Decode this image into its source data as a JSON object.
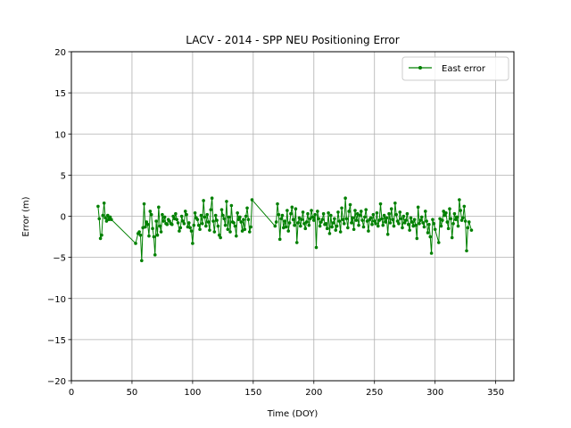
{
  "chart_data": {
    "type": "line",
    "title": "LACV - 2014 - SPP NEU Positioning Error",
    "xlabel": "Time (DOY)",
    "ylabel": "Error (m)",
    "xlim": [
      0,
      365
    ],
    "ylim": [
      -20,
      20
    ],
    "xticks": [
      0,
      50,
      100,
      150,
      200,
      250,
      300,
      350
    ],
    "yticks": [
      -20,
      -15,
      -10,
      -5,
      0,
      5,
      10,
      15,
      20
    ],
    "grid": true,
    "legend_position": "top-right",
    "series": [
      {
        "name": "East error",
        "color": "#008000",
        "points": [
          [
            22,
            1.2
          ],
          [
            23,
            -0.3
          ],
          [
            24,
            -2.7
          ],
          [
            25,
            -2.3
          ],
          [
            26,
            0.1
          ],
          [
            27,
            1.6
          ],
          [
            28,
            -0.2
          ],
          [
            29,
            -0.6
          ],
          [
            30,
            0.1
          ],
          [
            31,
            -0.4
          ],
          [
            32,
            -0.1
          ],
          [
            33,
            -0.4
          ],
          [
            53,
            -3.3
          ],
          [
            55,
            -2.1
          ],
          [
            56,
            -1.9
          ],
          [
            57,
            -2.3
          ],
          [
            58,
            -5.4
          ],
          [
            59,
            -1.4
          ],
          [
            60,
            1.5
          ],
          [
            61,
            -1.3
          ],
          [
            62,
            -0.7
          ],
          [
            63,
            -1.0
          ],
          [
            64,
            -2.4
          ],
          [
            65,
            0.6
          ],
          [
            66,
            0.2
          ],
          [
            67,
            -1.5
          ],
          [
            68,
            -2.5
          ],
          [
            69,
            -4.7
          ],
          [
            70,
            -0.6
          ],
          [
            71,
            -2.3
          ],
          [
            72,
            1.1
          ],
          [
            73,
            -1.2
          ],
          [
            74,
            -1.9
          ],
          [
            75,
            0.2
          ],
          [
            76,
            -0.6
          ],
          [
            77,
            -0.1
          ],
          [
            78,
            -0.9
          ],
          [
            79,
            -1.0
          ],
          [
            80,
            -0.4
          ],
          [
            81,
            -0.6
          ],
          [
            82,
            -0.9
          ],
          [
            83,
            -1.0
          ],
          [
            84,
            0.0
          ],
          [
            85,
            -0.3
          ],
          [
            86,
            0.3
          ],
          [
            87,
            -0.4
          ],
          [
            88,
            -0.8
          ],
          [
            89,
            -1.8
          ],
          [
            90,
            -1.4
          ],
          [
            91,
            0.0
          ],
          [
            92,
            -0.6
          ],
          [
            93,
            -0.9
          ],
          [
            94,
            0.6
          ],
          [
            95,
            0.2
          ],
          [
            96,
            -1.3
          ],
          [
            97,
            -0.8
          ],
          [
            98,
            -1.4
          ],
          [
            99,
            -1.8
          ],
          [
            100,
            -3.3
          ],
          [
            101,
            -1.1
          ],
          [
            102,
            0.4
          ],
          [
            103,
            -0.2
          ],
          [
            104,
            -0.4
          ],
          [
            105,
            -1.1
          ],
          [
            106,
            -1.6
          ],
          [
            107,
            0.1
          ],
          [
            108,
            -0.9
          ],
          [
            109,
            1.9
          ],
          [
            110,
            -0.1
          ],
          [
            111,
            -1.2
          ],
          [
            112,
            0.2
          ],
          [
            113,
            -0.7
          ],
          [
            114,
            -1.7
          ],
          [
            115,
            0.8
          ],
          [
            116,
            2.2
          ],
          [
            117,
            -0.6
          ],
          [
            118,
            -1.9
          ],
          [
            119,
            0.1
          ],
          [
            120,
            -0.5
          ],
          [
            121,
            -1.2
          ],
          [
            122,
            -2.3
          ],
          [
            123,
            -2.6
          ],
          [
            124,
            0.8
          ],
          [
            125,
            0.1
          ],
          [
            126,
            -0.3
          ],
          [
            127,
            -1.1
          ],
          [
            128,
            1.8
          ],
          [
            129,
            -1.6
          ],
          [
            130,
            -0.1
          ],
          [
            131,
            -1.9
          ],
          [
            132,
            1.3
          ],
          [
            133,
            -0.7
          ],
          [
            134,
            -0.8
          ],
          [
            135,
            -1.2
          ],
          [
            136,
            -2.4
          ],
          [
            137,
            0.4
          ],
          [
            138,
            -0.4
          ],
          [
            139,
            -0.1
          ],
          [
            140,
            -0.7
          ],
          [
            141,
            -1.8
          ],
          [
            142,
            -0.4
          ],
          [
            143,
            -1.6
          ],
          [
            144,
            0.0
          ],
          [
            145,
            1.0
          ],
          [
            146,
            -0.4
          ],
          [
            147,
            -1.9
          ],
          [
            148,
            -1.3
          ],
          [
            149,
            2.0
          ],
          [
            168,
            -1.2
          ],
          [
            169,
            -0.7
          ],
          [
            170,
            1.5
          ],
          [
            171,
            0.2
          ],
          [
            172,
            -2.8
          ],
          [
            173,
            -0.3
          ],
          [
            174,
            0.1
          ],
          [
            175,
            -1.4
          ],
          [
            176,
            -0.6
          ],
          [
            177,
            -1.3
          ],
          [
            178,
            0.7
          ],
          [
            179,
            -1.8
          ],
          [
            180,
            -0.8
          ],
          [
            181,
            0.3
          ],
          [
            182,
            1.1
          ],
          [
            183,
            -0.4
          ],
          [
            184,
            -1.1
          ],
          [
            185,
            0.9
          ],
          [
            186,
            -3.2
          ],
          [
            187,
            -0.8
          ],
          [
            188,
            -0.2
          ],
          [
            189,
            -1.2
          ],
          [
            190,
            -0.4
          ],
          [
            191,
            0.5
          ],
          [
            192,
            -0.9
          ],
          [
            193,
            -1.5
          ],
          [
            194,
            -0.7
          ],
          [
            195,
            0.3
          ],
          [
            196,
            -1.1
          ],
          [
            197,
            -0.3
          ],
          [
            198,
            0.7
          ],
          [
            199,
            -0.1
          ],
          [
            200,
            -0.5
          ],
          [
            201,
            0.2
          ],
          [
            202,
            -3.8
          ],
          [
            203,
            0.6
          ],
          [
            204,
            -0.3
          ],
          [
            205,
            -1.2
          ],
          [
            206,
            -0.7
          ],
          [
            207,
            -0.4
          ],
          [
            208,
            0.3
          ],
          [
            209,
            -1.0
          ],
          [
            210,
            -0.9
          ],
          [
            211,
            -1.5
          ],
          [
            212,
            0.4
          ],
          [
            213,
            -2.1
          ],
          [
            214,
            0.1
          ],
          [
            215,
            -1.3
          ],
          [
            216,
            -0.8
          ],
          [
            217,
            -0.3
          ],
          [
            218,
            -1.7
          ],
          [
            219,
            -1.2
          ],
          [
            220,
            0.5
          ],
          [
            221,
            -0.6
          ],
          [
            222,
            -1.9
          ],
          [
            223,
            1.0
          ],
          [
            224,
            -0.4
          ],
          [
            225,
            -0.9
          ],
          [
            226,
            2.2
          ],
          [
            227,
            -0.3
          ],
          [
            228,
            -1.4
          ],
          [
            229,
            0.6
          ],
          [
            230,
            1.4
          ],
          [
            231,
            -0.8
          ],
          [
            232,
            -0.2
          ],
          [
            233,
            -1.6
          ],
          [
            234,
            0.7
          ],
          [
            235,
            -0.5
          ],
          [
            236,
            0.3
          ],
          [
            237,
            -1.1
          ],
          [
            238,
            0.1
          ],
          [
            239,
            0.6
          ],
          [
            240,
            -0.5
          ],
          [
            241,
            -1.3
          ],
          [
            242,
            -0.1
          ],
          [
            243,
            0.8
          ],
          [
            244,
            -0.6
          ],
          [
            245,
            -1.8
          ],
          [
            246,
            -0.4
          ],
          [
            247,
            -0.2
          ],
          [
            248,
            -1.0
          ],
          [
            249,
            0.2
          ],
          [
            250,
            -0.6
          ],
          [
            251,
            -0.9
          ],
          [
            252,
            0.4
          ],
          [
            253,
            -1.2
          ],
          [
            254,
            -0.5
          ],
          [
            255,
            1.5
          ],
          [
            256,
            -0.3
          ],
          [
            257,
            -1.1
          ],
          [
            258,
            0.1
          ],
          [
            259,
            -0.7
          ],
          [
            260,
            -0.2
          ],
          [
            261,
            -2.2
          ],
          [
            262,
            0.3
          ],
          [
            263,
            -0.8
          ],
          [
            264,
            0.9
          ],
          [
            265,
            -0.4
          ],
          [
            266,
            -1.2
          ],
          [
            267,
            1.6
          ],
          [
            268,
            0.2
          ],
          [
            269,
            -0.6
          ],
          [
            270,
            -0.9
          ],
          [
            271,
            0.5
          ],
          [
            272,
            -0.3
          ],
          [
            273,
            -1.4
          ],
          [
            274,
            0.0
          ],
          [
            275,
            -0.8
          ],
          [
            276,
            -0.5
          ],
          [
            277,
            0.3
          ],
          [
            278,
            -1.0
          ],
          [
            279,
            -1.7
          ],
          [
            280,
            -0.2
          ],
          [
            281,
            -0.7
          ],
          [
            282,
            -1.2
          ],
          [
            283,
            -0.4
          ],
          [
            284,
            -1.1
          ],
          [
            285,
            -2.7
          ],
          [
            286,
            1.1
          ],
          [
            287,
            -0.9
          ],
          [
            288,
            -0.5
          ],
          [
            289,
            -0.1
          ],
          [
            290,
            -0.8
          ],
          [
            291,
            -1.3
          ],
          [
            292,
            0.6
          ],
          [
            293,
            -0.6
          ],
          [
            294,
            -2.0
          ],
          [
            295,
            -1.0
          ],
          [
            296,
            -2.5
          ],
          [
            297,
            -4.5
          ],
          [
            298,
            -0.4
          ],
          [
            299,
            -0.9
          ],
          [
            300,
            -1.6
          ],
          [
            303,
            -3.2
          ],
          [
            304,
            -0.3
          ],
          [
            305,
            -1.2
          ],
          [
            306,
            -0.5
          ],
          [
            307,
            0.6
          ],
          [
            308,
            0.1
          ],
          [
            309,
            0.4
          ],
          [
            310,
            -0.7
          ],
          [
            311,
            -1.5
          ],
          [
            312,
            0.9
          ],
          [
            313,
            -0.3
          ],
          [
            314,
            -2.6
          ],
          [
            315,
            -0.9
          ],
          [
            316,
            0.3
          ],
          [
            317,
            -0.4
          ],
          [
            318,
            -0.1
          ],
          [
            319,
            -1.2
          ],
          [
            320,
            2.0
          ],
          [
            321,
            0.7
          ],
          [
            322,
            -0.5
          ],
          [
            323,
            -0.2
          ],
          [
            324,
            1.2
          ],
          [
            325,
            -0.6
          ],
          [
            326,
            -4.2
          ],
          [
            327,
            -1.4
          ],
          [
            328,
            -0.7
          ],
          [
            330,
            -1.7
          ]
        ]
      }
    ]
  }
}
